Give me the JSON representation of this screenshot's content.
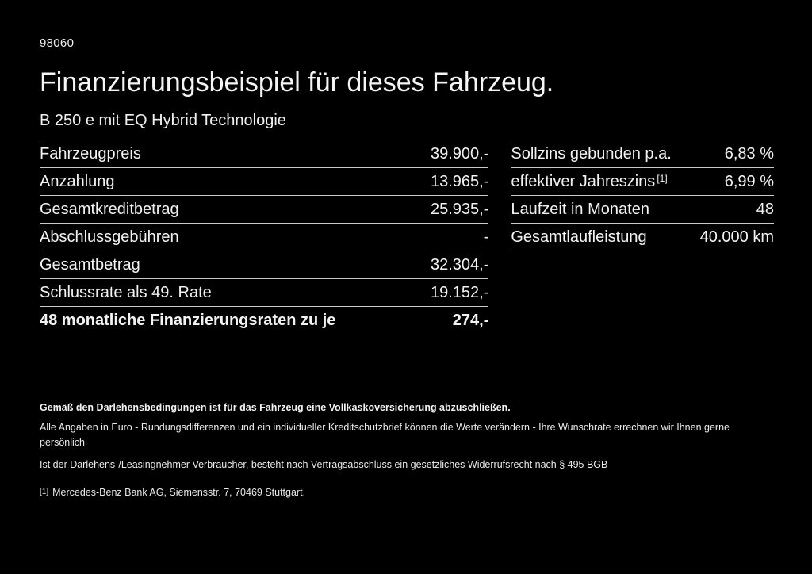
{
  "page": {
    "doc_number": "98060",
    "title": "Finanzierungsbeispiel für dieses Fahrzeug.",
    "subtitle": "B 250 e mit EQ Hybrid Technologie"
  },
  "left_table": {
    "rows": [
      {
        "label": "Fahrzeugpreis",
        "value": "39.900,-"
      },
      {
        "label": "Anzahlung",
        "value": "13.965,-"
      },
      {
        "label": "Gesamtkreditbetrag",
        "value": "25.935,-"
      },
      {
        "label": "Abschlussgebühren",
        "value": "-"
      },
      {
        "label": "Gesamtbetrag",
        "value": "32.304,-"
      },
      {
        "label": "Schlussrate als 49. Rate",
        "value": "19.152,-"
      },
      {
        "label": "48 monatliche Finanzierungsraten zu je",
        "value": "274,-"
      }
    ]
  },
  "right_table": {
    "rows": [
      {
        "label": "Sollzins gebunden p.a.",
        "value": "6,83 %"
      },
      {
        "label": "effektiver Jahreszins",
        "sup": "[1]",
        "value": "6,99 %"
      },
      {
        "label": "Laufzeit in Monaten",
        "value": "48"
      },
      {
        "label": "Gesamtlaufleistung",
        "value": "40.000 km"
      }
    ]
  },
  "footer": {
    "bold_line": "Gemäß den Darlehensbedingungen ist für das Fahrzeug eine Vollkaskoversicherung abzuschließen.",
    "line2": "Alle Angaben in Euro - Rundungsdifferenzen und ein individueller Kreditschutzbrief können die Werte verändern - Ihre Wunschrate errechnen wir Ihnen gerne persönlich",
    "line3": "Ist der Darlehens-/Leasingnehmer Verbraucher, besteht nach Vertragsabschluss ein gesetzliches Widerrufsrecht nach § 495 BGB",
    "footnote_marker": "[1]",
    "footnote_text": "Mercedes-Benz Bank AG, Siemensstr. 7, 70469 Stuttgart."
  },
  "colors": {
    "background": "#000000",
    "text": "#f2f2f2",
    "divider": "#c9c9c9"
  }
}
